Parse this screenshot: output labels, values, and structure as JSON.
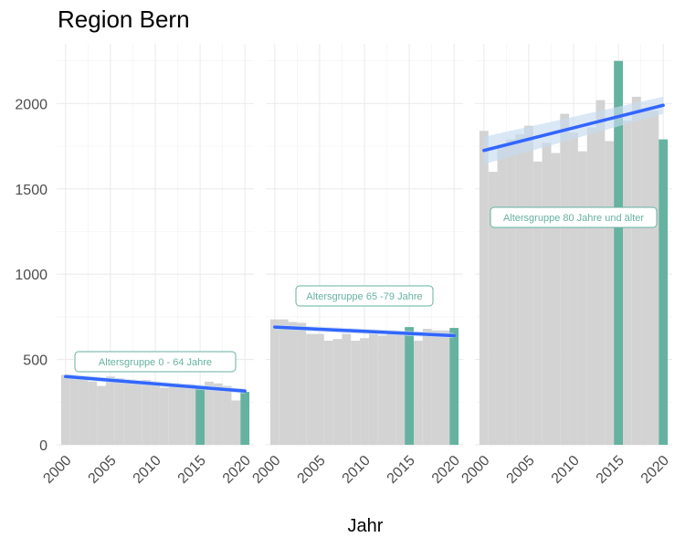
{
  "title": "Region Bern",
  "chart_data": {
    "type": "bar",
    "title": "Region Bern",
    "xlabel": "Jahr",
    "ylabel": "",
    "ylim": [
      0,
      2350
    ],
    "xlim": [
      1999,
      2021
    ],
    "yticks": [
      0,
      500,
      1000,
      1500,
      2000
    ],
    "xticks": [
      2000,
      2005,
      2010,
      2015,
      2020
    ],
    "grid": true,
    "colors": {
      "bar": "#d3d3d3",
      "highlight": "#66b2a0",
      "trend": "#3366ff",
      "ribbon": "#c6dbef",
      "label_border": "#66b2a0",
      "label_text": "#66b2a0"
    },
    "panels": [
      {
        "label": "Altersgruppe 0 - 64 Jahre",
        "years": [
          2000,
          2001,
          2002,
          2003,
          2004,
          2005,
          2006,
          2007,
          2008,
          2009,
          2010,
          2011,
          2012,
          2013,
          2014,
          2015,
          2016,
          2017,
          2018,
          2019,
          2020
        ],
        "values": [
          410,
          395,
          385,
          370,
          345,
          400,
          390,
          375,
          365,
          380,
          355,
          335,
          345,
          340,
          355,
          340,
          370,
          360,
          345,
          260,
          310
        ],
        "highlight_years": [
          2015,
          2020
        ],
        "trend": {
          "start": 400,
          "end": 315,
          "band": 15
        }
      },
      {
        "label": "Altersgruppe 65 -79 Jahre",
        "years": [
          2000,
          2001,
          2002,
          2003,
          2004,
          2005,
          2006,
          2007,
          2008,
          2009,
          2010,
          2011,
          2012,
          2013,
          2014,
          2015,
          2016,
          2017,
          2018,
          2019,
          2020
        ],
        "values": [
          735,
          735,
          720,
          715,
          650,
          650,
          610,
          620,
          650,
          610,
          625,
          650,
          640,
          665,
          660,
          690,
          610,
          680,
          670,
          670,
          685
        ],
        "highlight_years": [
          2015,
          2020
        ],
        "trend": {
          "start": 690,
          "end": 640,
          "band": 15
        }
      },
      {
        "label": "Altersgruppe 80 Jahre und älter",
        "years": [
          2000,
          2001,
          2002,
          2003,
          2004,
          2005,
          2006,
          2007,
          2008,
          2009,
          2010,
          2011,
          2012,
          2013,
          2014,
          2015,
          2016,
          2017,
          2018,
          2019,
          2020
        ],
        "values": [
          1840,
          1600,
          1760,
          1790,
          1820,
          1870,
          1660,
          1770,
          1710,
          1940,
          1830,
          1720,
          1860,
          2020,
          1780,
          2250,
          1900,
          2040,
          1960,
          1960,
          1790
        ],
        "highlight_years": [
          2015,
          2020
        ],
        "trend": {
          "start": 1725,
          "end": 1990,
          "band": 50,
          "band_start": 80
        }
      }
    ]
  }
}
